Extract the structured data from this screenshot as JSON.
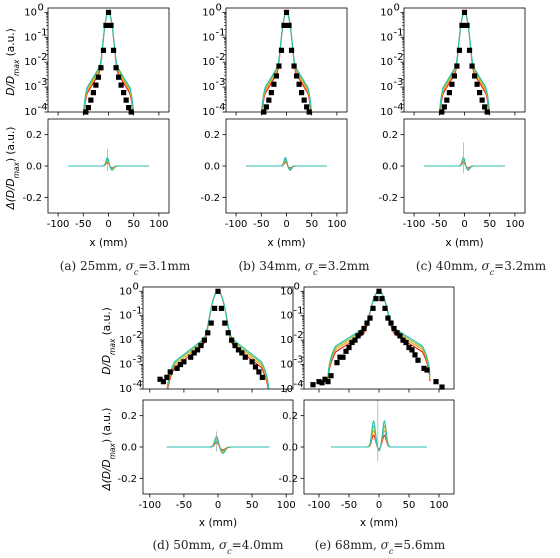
{
  "labels": {
    "top_ylabel": "D/D_max (a.u.)",
    "bottom_ylabel": "Δ(D/D_max) (a.u.)",
    "xlabel": "x (mm)"
  },
  "colors": {
    "measured": "#000000",
    "series": [
      "#e8161b",
      "#f3a712",
      "#8cc63f",
      "#2bbfb0"
    ]
  },
  "chart_data": [
    {
      "type": "line",
      "caption": "(a) 25mm, σ_c=3.1mm",
      "xlim": [
        -120,
        120
      ],
      "ylim_top": [
        0.0001,
        1.5
      ],
      "ylog_top": true,
      "ylim_bottom": [
        -0.3,
        0.3
      ],
      "xticks": [
        -100,
        -50,
        0,
        50,
        100
      ],
      "measured_x": [
        -45,
        -40,
        -35,
        -30,
        -25,
        -20,
        -15,
        -10,
        -5,
        0,
        5,
        10,
        15,
        20,
        25,
        30,
        35,
        40,
        45
      ],
      "measured_y": [
        0.0001,
        0.00015,
        0.0003,
        0.0006,
        0.0012,
        0.0025,
        0.006,
        0.03,
        0.3,
        1.0,
        0.3,
        0.03,
        0.006,
        0.0025,
        0.0012,
        0.0006,
        0.0003,
        0.00015,
        0.0001
      ],
      "series_profile": {
        "width": 4.5,
        "tail_amp": 0.02,
        "tail_scale": 13,
        "tail_end": 50
      },
      "diff_profile": {
        "peak": 0.04,
        "dip": -0.02,
        "spike": 0.11,
        "x_end": 80
      }
    },
    {
      "type": "line",
      "caption": "(b) 34mm, σ_c=3.2mm",
      "xlim": [
        -120,
        120
      ],
      "ylim_top": [
        0.0001,
        1.5
      ],
      "ylog_top": true,
      "ylim_bottom": [
        -0.3,
        0.3
      ],
      "xticks": [
        -100,
        -50,
        0,
        50,
        100
      ],
      "measured_x": [
        -45,
        -40,
        -35,
        -30,
        -25,
        -20,
        -15,
        -10,
        -5,
        0,
        5,
        10,
        15,
        20,
        25,
        30,
        35,
        40,
        45
      ],
      "measured_y": [
        0.0001,
        0.00016,
        0.0003,
        0.0006,
        0.0013,
        0.0028,
        0.007,
        0.03,
        0.3,
        1.0,
        0.3,
        0.03,
        0.007,
        0.0028,
        0.0013,
        0.0006,
        0.0003,
        0.00016,
        0.0001
      ],
      "series_profile": {
        "width": 4.6,
        "tail_amp": 0.02,
        "tail_scale": 13,
        "tail_end": 50
      },
      "diff_profile": {
        "peak": 0.04,
        "dip": -0.02,
        "spike": 0.0,
        "x_end": 80
      }
    },
    {
      "type": "line",
      "caption": "(c) 40mm, σ_c=3.2mm",
      "xlim": [
        -120,
        120
      ],
      "ylim_top": [
        0.0001,
        1.5
      ],
      "ylog_top": true,
      "ylim_bottom": [
        -0.3,
        0.3
      ],
      "xticks": [
        -100,
        -50,
        0,
        50,
        100
      ],
      "measured_x": [
        -45,
        -40,
        -35,
        -30,
        -25,
        -20,
        -15,
        -10,
        -5,
        0,
        5,
        10,
        15,
        20,
        25,
        30,
        35,
        40,
        45
      ],
      "measured_y": [
        0.0001,
        0.00016,
        0.0003,
        0.0006,
        0.0013,
        0.0028,
        0.007,
        0.03,
        0.3,
        1.0,
        0.3,
        0.03,
        0.007,
        0.0028,
        0.0013,
        0.0006,
        0.0003,
        0.00016,
        0.0001
      ],
      "series_profile": {
        "width": 4.6,
        "tail_amp": 0.02,
        "tail_scale": 13,
        "tail_end": 50
      },
      "diff_profile": {
        "peak": 0.04,
        "dip": -0.02,
        "spike": 0.15,
        "x_end": 80
      }
    },
    {
      "type": "line",
      "caption": "(d) 50mm, σ_c=4.0mm",
      "xlim": [
        -110,
        110
      ],
      "ylim_top": [
        0.0001,
        1.5
      ],
      "ylog_top": true,
      "ylim_bottom": [
        -0.3,
        0.3
      ],
      "xticks": [
        -100,
        -50,
        0,
        50,
        100
      ],
      "measured_x": [
        -85,
        -80,
        -75,
        -70,
        -60,
        -55,
        -50,
        -40,
        -35,
        -30,
        -25,
        -20,
        -15,
        -10,
        -5,
        0,
        5,
        10,
        15,
        20,
        25,
        30,
        35,
        40,
        50,
        55,
        60,
        65
      ],
      "measured_y": [
        0.00025,
        0.0002,
        0.0003,
        0.0005,
        0.0007,
        0.001,
        0.0013,
        0.002,
        0.003,
        0.004,
        0.006,
        0.01,
        0.02,
        0.05,
        0.2,
        1.0,
        0.2,
        0.05,
        0.02,
        0.01,
        0.006,
        0.004,
        0.003,
        0.002,
        0.0013,
        0.0008,
        0.0005,
        0.0003
      ],
      "series_profile": {
        "width": 5.5,
        "tail_amp": 0.025,
        "tail_scale": 20,
        "tail_end": 75
      },
      "diff_profile": {
        "peak": 0.05,
        "dip": -0.03,
        "spike": 0.1,
        "x_end": 75
      }
    },
    {
      "type": "line",
      "caption": "(e) 68mm, σ_c=5.6mm",
      "xlim": [
        -125,
        125
      ],
      "ylim_top": [
        0.0001,
        1.5
      ],
      "ylog_top": true,
      "ylim_bottom": [
        -0.3,
        0.3
      ],
      "xticks": [
        -100,
        -50,
        0,
        50,
        100
      ],
      "measured_x": [
        -110,
        -100,
        -95,
        -90,
        -85,
        -80,
        -70,
        -65,
        -60,
        -55,
        -50,
        -45,
        -40,
        -35,
        -30,
        -25,
        -20,
        -15,
        -10,
        -5,
        0,
        5,
        10,
        15,
        20,
        25,
        30,
        35,
        40,
        45,
        50,
        55,
        60,
        65,
        75,
        80,
        95,
        105
      ],
      "measured_y": [
        0.00015,
        0.0002,
        0.00018,
        0.00025,
        0.0002,
        0.00035,
        0.0012,
        0.002,
        0.002,
        0.0035,
        0.005,
        0.008,
        0.01,
        0.015,
        0.02,
        0.03,
        0.05,
        0.08,
        0.2,
        0.5,
        1.0,
        0.5,
        0.2,
        0.08,
        0.05,
        0.03,
        0.02,
        0.015,
        0.01,
        0.008,
        0.005,
        0.004,
        0.0025,
        0.0015,
        0.0007,
        0.0006,
        0.0002,
        0.00012
      ],
      "series_profile": {
        "width": 7,
        "tail_amp": 0.06,
        "tail_scale": 28,
        "tail_end": 85
      },
      "diff_profile": {
        "peak": 0.12,
        "dip": 0.0,
        "spike": 0.3,
        "x_end": 80
      }
    }
  ]
}
